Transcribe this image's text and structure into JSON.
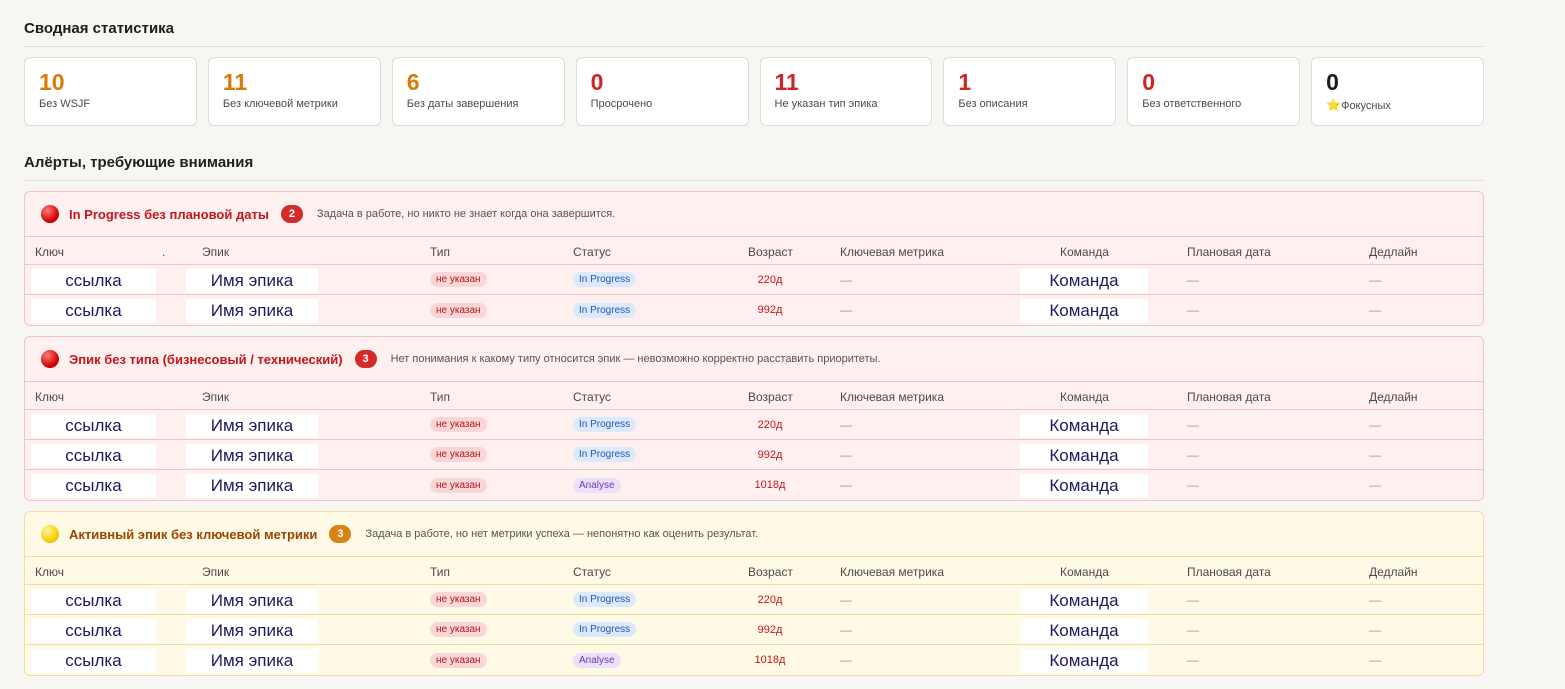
{
  "summary": {
    "title": "Сводная статистика",
    "stats": [
      {
        "value": "10",
        "label": "Без WSJF",
        "color": "#d97a0a"
      },
      {
        "value": "11",
        "label": "Без ключевой метрики",
        "color": "#d97a0a"
      },
      {
        "value": "6",
        "label": "Без даты завершения",
        "color": "#d97a0a"
      },
      {
        "value": "0",
        "label": "Просрочено",
        "color": "#d32424"
      },
      {
        "value": "11",
        "label": "Не указан тип эпика",
        "color": "#d32424"
      },
      {
        "value": "1",
        "label": "Без описания",
        "color": "#d32424"
      },
      {
        "value": "0",
        "label": "Без ответственного",
        "color": "#d32424"
      },
      {
        "value": "0",
        "label": "Фокусных",
        "color": "#1c1c1c",
        "icon": "star-icon",
        "icon_glyph": "⭐"
      }
    ]
  },
  "alerts_title": "Алёрты, требующие внимания",
  "columns": {
    "key": "Ключ",
    "dot": ".",
    "epic": "Эпик",
    "type": "Тип",
    "status": "Статус",
    "age": "Возраст",
    "metric": "Ключевая метрика",
    "team": "Команда",
    "plan_date": "Плановая дата",
    "deadline": "Дедлайн"
  },
  "alerts": [
    {
      "severity": "red",
      "name": "In Progress без плановой даты",
      "count": "2",
      "description": "Задача в работе, но никто не знает когда она завершится.",
      "show_dot_column": true,
      "rows": [
        {
          "key": "ссылка",
          "epic": "Имя эпика",
          "type": "не указан",
          "status": "In Progress",
          "age": "220д",
          "metric": "—",
          "team": "Команда",
          "plan_date": "—",
          "deadline": "—"
        },
        {
          "key": "ссылка",
          "epic": "Имя эпика",
          "type": "не указан",
          "status": "In Progress",
          "age": "992д",
          "metric": "—",
          "team": "Команда",
          "plan_date": "—",
          "deadline": "—"
        }
      ]
    },
    {
      "severity": "red",
      "name": "Эпик без типа (бизнесовый / технический)",
      "count": "3",
      "description": "Нет понимания к какому типу относится эпик — невозможно корректно расставить приоритеты.",
      "show_dot_column": false,
      "rows": [
        {
          "key": "ссылка",
          "epic": "Имя эпика",
          "type": "не указан",
          "status": "In Progress",
          "age": "220д",
          "metric": "—",
          "team": "Команда",
          "plan_date": "—",
          "deadline": "—"
        },
        {
          "key": "ссылка",
          "epic": "Имя эпика",
          "type": "не указан",
          "status": "In Progress",
          "age": "992д",
          "metric": "—",
          "team": "Команда",
          "plan_date": "—",
          "deadline": "—"
        },
        {
          "key": "ссылка",
          "epic": "Имя эпика",
          "type": "не указан",
          "status": "Analyse",
          "age": "1018д",
          "metric": "—",
          "team": "Команда",
          "plan_date": "—",
          "deadline": "—"
        }
      ]
    },
    {
      "severity": "yellow",
      "name": "Активный эпик без ключевой метрики",
      "count": "3",
      "description": "Задача в работе, но нет метрики успеха — непонятно как оценить результат.",
      "show_dot_column": false,
      "rows": [
        {
          "key": "ссылка",
          "epic": "Имя эпика",
          "type": "не указан",
          "status": "In Progress",
          "age": "220д",
          "metric": "—",
          "team": "Команда",
          "plan_date": "—",
          "deadline": "—"
        },
        {
          "key": "ссылка",
          "epic": "Имя эпика",
          "type": "не указан",
          "status": "In Progress",
          "age": "992д",
          "metric": "—",
          "team": "Команда",
          "plan_date": "—",
          "deadline": "—"
        },
        {
          "key": "ссылка",
          "epic": "Имя эпика",
          "type": "не указан",
          "status": "Analyse",
          "age": "1018д",
          "metric": "—",
          "team": "Команда",
          "plan_date": "—",
          "deadline": "—"
        }
      ]
    }
  ]
}
